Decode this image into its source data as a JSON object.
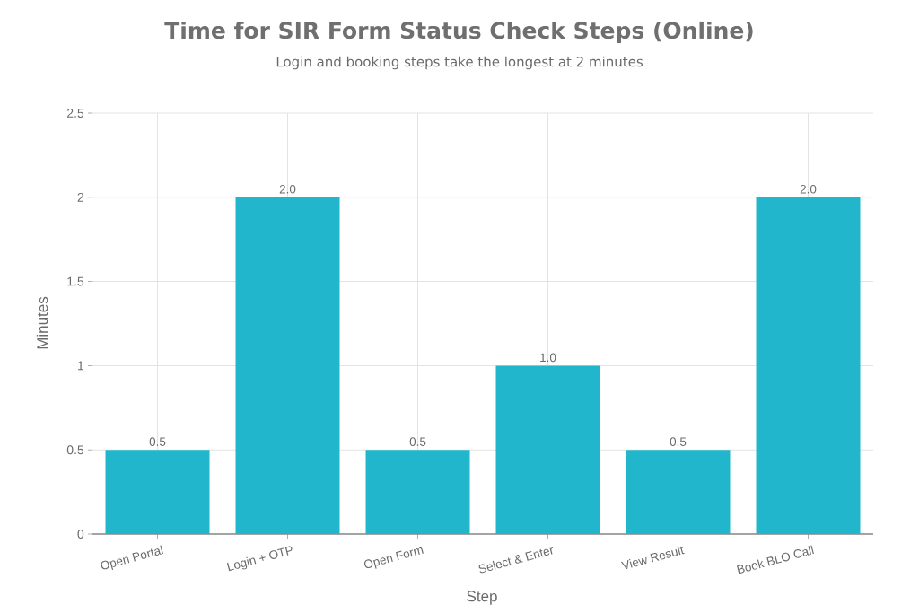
{
  "chart_data": {
    "type": "bar",
    "title": "Time for SIR Form Status Check Steps (Online)",
    "subtitle": "Login and booking steps take the longest at 2 minutes",
    "xlabel": "Step",
    "ylabel": "Minutes",
    "categories": [
      "Open Portal",
      "Login + OTP",
      "Open Form",
      "Select & Enter",
      "View Result",
      "Book BLO Call"
    ],
    "values": [
      0.5,
      2,
      0.5,
      1,
      0.5,
      2
    ],
    "value_labels": [
      "0.5",
      "2.0",
      "0.5",
      "1.0",
      "0.5",
      "2.0"
    ],
    "color": "#21b6cc",
    "ylim": [
      0,
      2.5
    ],
    "yticks": [
      0,
      0.5,
      1,
      1.5,
      2,
      2.5
    ],
    "grid": true
  }
}
